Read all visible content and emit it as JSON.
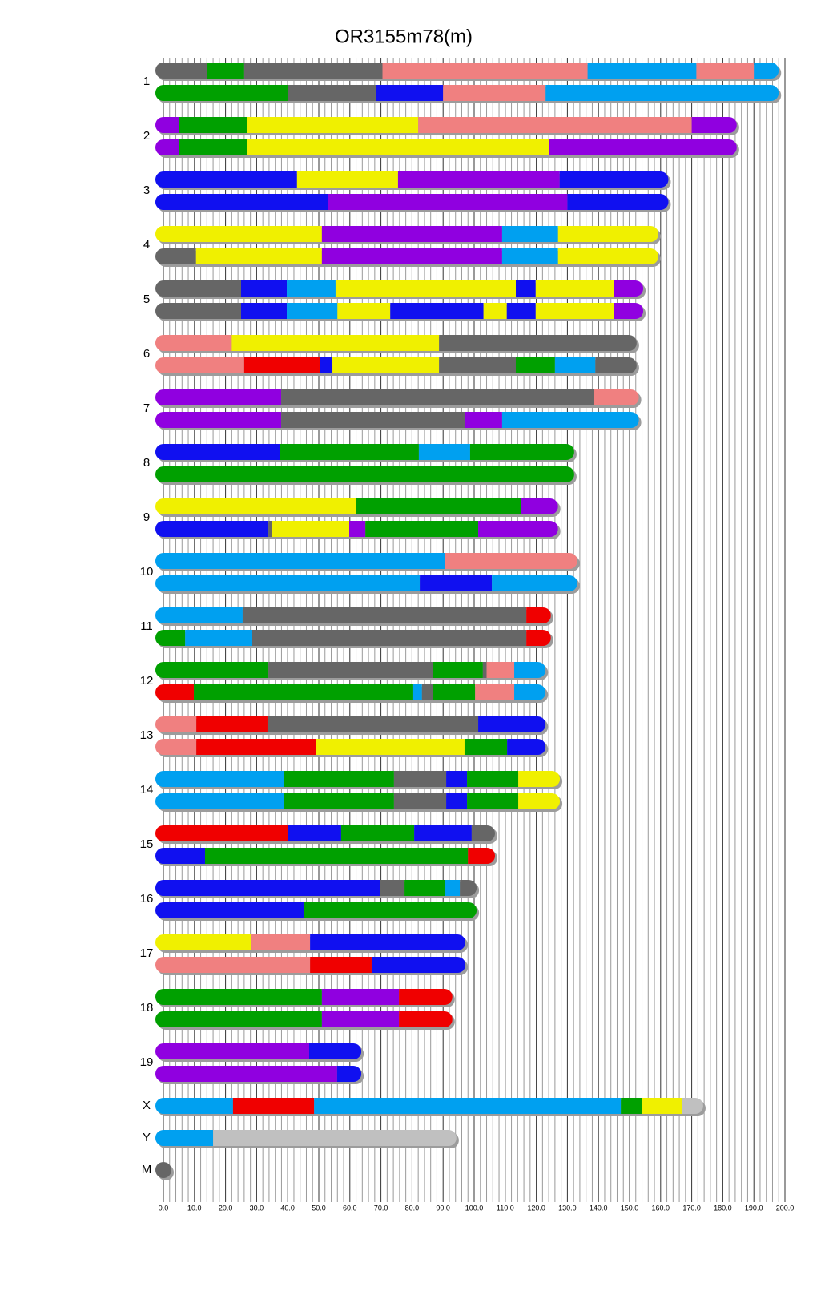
{
  "chart_data": {
    "type": "haplotype",
    "title": "OR3155m78(m)",
    "xlim": [
      0,
      200
    ],
    "xticks": [
      {
        "value": 0,
        "label": "0.0"
      },
      {
        "value": 10,
        "label": "10.0"
      },
      {
        "value": 20,
        "label": "20.0"
      },
      {
        "value": 30,
        "label": "30.0"
      },
      {
        "value": 40,
        "label": "40.0"
      },
      {
        "value": 50,
        "label": "50.0"
      },
      {
        "value": 60,
        "label": "60.0"
      },
      {
        "value": 70,
        "label": "70.0"
      },
      {
        "value": 80,
        "label": "80.0"
      },
      {
        "value": 90,
        "label": "90.0"
      },
      {
        "value": 100,
        "label": "100.0"
      },
      {
        "value": 110,
        "label": "110.0"
      },
      {
        "value": 120,
        "label": "120.0"
      },
      {
        "value": 130,
        "label": "130.0"
      },
      {
        "value": 140,
        "label": "140.0"
      },
      {
        "value": 150,
        "label": "150.0"
      },
      {
        "value": 160,
        "label": "160.0"
      },
      {
        "value": 170,
        "label": "170.0"
      },
      {
        "value": 180,
        "label": "180.0"
      },
      {
        "value": 190,
        "label": "190.0"
      },
      {
        "value": 200,
        "label": "200.0"
      }
    ],
    "grid": true,
    "chromosomes": [
      {
        "name": "1",
        "haplotypes": [
          {
            "ends": [
              14,
              26,
              70.5,
              136.5,
              171.5,
              190,
              198
            ],
            "colors": [
              "#666666",
              "#00a000",
              "#666666",
              "#f08080",
              "#00a0f0",
              "#f08080",
              "#00a0f0"
            ]
          },
          {
            "ends": [
              40,
              68.5,
              90,
              123,
              198
            ],
            "colors": [
              "#00a000",
              "#666666",
              "#1010f0",
              "#f08080",
              "#00a0f0"
            ]
          }
        ]
      },
      {
        "name": "2",
        "haplotypes": [
          {
            "ends": [
              5,
              27,
              82,
              170,
              184.5
            ],
            "colors": [
              "#9000e0",
              "#00a000",
              "#f0f000",
              "#f08080",
              "#9000e0"
            ]
          },
          {
            "ends": [
              5,
              27,
              124,
              184.5
            ],
            "colors": [
              "#9000e0",
              "#00a000",
              "#f0f000",
              "#9000e0"
            ]
          }
        ]
      },
      {
        "name": "3",
        "haplotypes": [
          {
            "ends": [
              43,
              75.5,
              127.5,
              162.5
            ],
            "colors": [
              "#1010f0",
              "#f0f000",
              "#9000e0",
              "#1010f0"
            ]
          },
          {
            "ends": [
              53,
              130,
              162.5
            ],
            "colors": [
              "#1010f0",
              "#9000e0",
              "#1010f0"
            ]
          }
        ]
      },
      {
        "name": "4",
        "haplotypes": [
          {
            "ends": [
              51,
              109,
              127,
              159.3
            ],
            "colors": [
              "#f0f000",
              "#9000e0",
              "#00a0f0",
              "#f0f000"
            ]
          },
          {
            "ends": [
              10.5,
              51,
              109,
              127,
              159.3
            ],
            "colors": [
              "#666666",
              "#f0f000",
              "#9000e0",
              "#00a0f0",
              "#f0f000"
            ]
          }
        ]
      },
      {
        "name": "5",
        "haplotypes": [
          {
            "ends": [
              25,
              39.7,
              55.4,
              113.4,
              119.8,
              145,
              154.4
            ],
            "colors": [
              "#666666",
              "#1010f0",
              "#00a0f0",
              "#f0f000",
              "#1010f0",
              "#f0f000",
              "#9000e0"
            ]
          },
          {
            "ends": [
              25,
              39.7,
              56,
              73,
              103,
              110.5,
              119.8,
              145,
              154.4
            ],
            "colors": [
              "#666666",
              "#1010f0",
              "#00a0f0",
              "#f0f000",
              "#1010f0",
              "#f0f000",
              "#1010f0",
              "#f0f000",
              "#9000e0"
            ]
          }
        ]
      },
      {
        "name": "6",
        "haplotypes": [
          {
            "ends": [
              22,
              88.7,
              152.3
            ],
            "colors": [
              "#f08080",
              "#f0f000",
              "#666666"
            ]
          },
          {
            "ends": [
              26,
              50.3,
              54.4,
              88.7,
              113.4,
              126,
              139,
              152.3
            ],
            "colors": [
              "#f08080",
              "#f00000",
              "#1010f0",
              "#f0f000",
              "#666666",
              "#00a000",
              "#00a0f0",
              "#666666"
            ]
          }
        ]
      },
      {
        "name": "7",
        "haplotypes": [
          {
            "ends": [
              37.9,
              138.4,
              153
            ],
            "colors": [
              "#9000e0",
              "#666666",
              "#f08080"
            ]
          },
          {
            "ends": [
              37.9,
              96.9,
              109,
              153
            ],
            "colors": [
              "#9000e0",
              "#666666",
              "#9000e0",
              "#00a0f0"
            ]
          }
        ]
      },
      {
        "name": "8",
        "haplotypes": [
          {
            "ends": [
              37.4,
              82.2,
              98.7,
              132.2
            ],
            "colors": [
              "#1010f0",
              "#00a000",
              "#00a0f0",
              "#00a000"
            ]
          },
          {
            "ends": [
              132.2
            ],
            "colors": [
              "#00a000"
            ]
          }
        ]
      },
      {
        "name": "9",
        "haplotypes": [
          {
            "ends": [
              61.9,
              115,
              127
            ],
            "colors": [
              "#f0f000",
              "#00a000",
              "#9000e0"
            ]
          },
          {
            "ends": [
              33.8,
              35,
              59.8,
              65,
              101.3,
              127
            ],
            "colors": [
              "#1010f0",
              "#666666",
              "#f0f000",
              "#9000e0",
              "#00a000",
              "#9000e0"
            ]
          }
        ]
      },
      {
        "name": "10",
        "haplotypes": [
          {
            "ends": [
              90.7,
              133.2
            ],
            "colors": [
              "#00a0f0",
              "#f08080"
            ]
          },
          {
            "ends": [
              82.5,
              105.7,
              133.2
            ],
            "colors": [
              "#00a0f0",
              "#1010f0",
              "#00a0f0"
            ]
          }
        ]
      },
      {
        "name": "11",
        "haplotypes": [
          {
            "ends": [
              25.5,
              116.8,
              124.7
            ],
            "colors": [
              "#00a0f0",
              "#666666",
              "#f00000"
            ]
          },
          {
            "ends": [
              7,
              28.4,
              116.8,
              124.7
            ],
            "colors": [
              "#00a000",
              "#00a0f0",
              "#666666",
              "#f00000"
            ]
          }
        ]
      },
      {
        "name": "12",
        "haplotypes": [
          {
            "ends": [
              33.8,
              86.6,
              102.8,
              104,
              112.9,
              123
            ],
            "colors": [
              "#00a000",
              "#666666",
              "#00a000",
              "#666666",
              "#f08080",
              "#00a0f0"
            ]
          },
          {
            "ends": [
              9.8,
              80.4,
              83.2,
              86.6,
              100.3,
              112.9,
              123
            ],
            "colors": [
              "#f00000",
              "#00a000",
              "#00a0f0",
              "#666666",
              "#00a000",
              "#f08080",
              "#00a0f0"
            ]
          }
        ]
      },
      {
        "name": "13",
        "haplotypes": [
          {
            "ends": [
              10.6,
              33.5,
              101.3,
              123
            ],
            "colors": [
              "#f08080",
              "#f00000",
              "#666666",
              "#1010f0"
            ]
          },
          {
            "ends": [
              10.6,
              49.2,
              96.9,
              110.6,
              123
            ],
            "colors": [
              "#f08080",
              "#f00000",
              "#f0f000",
              "#00a000",
              "#1010f0"
            ]
          }
        ]
      },
      {
        "name": "14",
        "haplotypes": [
          {
            "ends": [
              38.9,
              74.2,
              91,
              97.7,
              114.2,
              127.6
            ],
            "colors": [
              "#00a0f0",
              "#00a000",
              "#666666",
              "#1010f0",
              "#00a000",
              "#f0f000"
            ]
          },
          {
            "ends": [
              38.9,
              74.2,
              91,
              97.7,
              114.2,
              127.6
            ],
            "colors": [
              "#00a0f0",
              "#00a000",
              "#666666",
              "#1010f0",
              "#00a000",
              "#f0f000"
            ]
          }
        ]
      },
      {
        "name": "15",
        "haplotypes": [
          {
            "ends": [
              40,
              57.2,
              80.7,
              99.2,
              106.7
            ],
            "colors": [
              "#f00000",
              "#1010f0",
              "#00a000",
              "#1010f0",
              "#666666"
            ]
          },
          {
            "ends": [
              13.4,
              98,
              106.7
            ],
            "colors": [
              "#1010f0",
              "#00a000",
              "#f00000"
            ]
          }
        ]
      },
      {
        "name": "16",
        "haplotypes": [
          {
            "ends": [
              69.8,
              77.6,
              90.7,
              95.4,
              100.8
            ],
            "colors": [
              "#1010f0",
              "#666666",
              "#00a000",
              "#00a0f0",
              "#666666"
            ]
          },
          {
            "ends": [
              45.1,
              100.8
            ],
            "colors": [
              "#1010f0",
              "#00a000"
            ]
          }
        ]
      },
      {
        "name": "17",
        "haplotypes": [
          {
            "ends": [
              28.1,
              47.2,
              97.2
            ],
            "colors": [
              "#f0f000",
              "#f08080",
              "#1010f0"
            ]
          },
          {
            "ends": [
              47.2,
              67,
              97.2
            ],
            "colors": [
              "#f08080",
              "#f00000",
              "#1010f0"
            ]
          }
        ]
      },
      {
        "name": "18",
        "haplotypes": [
          {
            "ends": [
              51,
              75.8,
              93
            ],
            "colors": [
              "#00a000",
              "#9000e0",
              "#f00000"
            ]
          },
          {
            "ends": [
              51,
              75.8,
              93
            ],
            "colors": [
              "#00a000",
              "#9000e0",
              "#f00000"
            ]
          }
        ]
      },
      {
        "name": "19",
        "haplotypes": [
          {
            "ends": [
              46.9,
              63.7
            ],
            "colors": [
              "#9000e0",
              "#1010f0"
            ]
          },
          {
            "ends": [
              55.9,
              63.7
            ],
            "colors": [
              "#9000e0",
              "#1010f0"
            ]
          }
        ]
      },
      {
        "name": "X",
        "haplotypes": [
          {
            "ends": [
              22.4,
              48.5,
              147.2,
              154.1,
              167,
              173.7
            ],
            "colors": [
              "#00a0f0",
              "#f00000",
              "#00a0f0",
              "#00a000",
              "#f0f000",
              "#c0c0c0"
            ]
          }
        ]
      },
      {
        "name": "Y",
        "haplotypes": [
          {
            "ends": [
              16,
              94.3
            ],
            "colors": [
              "#00a0f0",
              "#c0c0c0"
            ]
          }
        ]
      },
      {
        "name": "M",
        "haplotypes": [
          {
            "ends": [
              0.3
            ],
            "colors": [
              "#666666"
            ]
          }
        ]
      }
    ]
  }
}
